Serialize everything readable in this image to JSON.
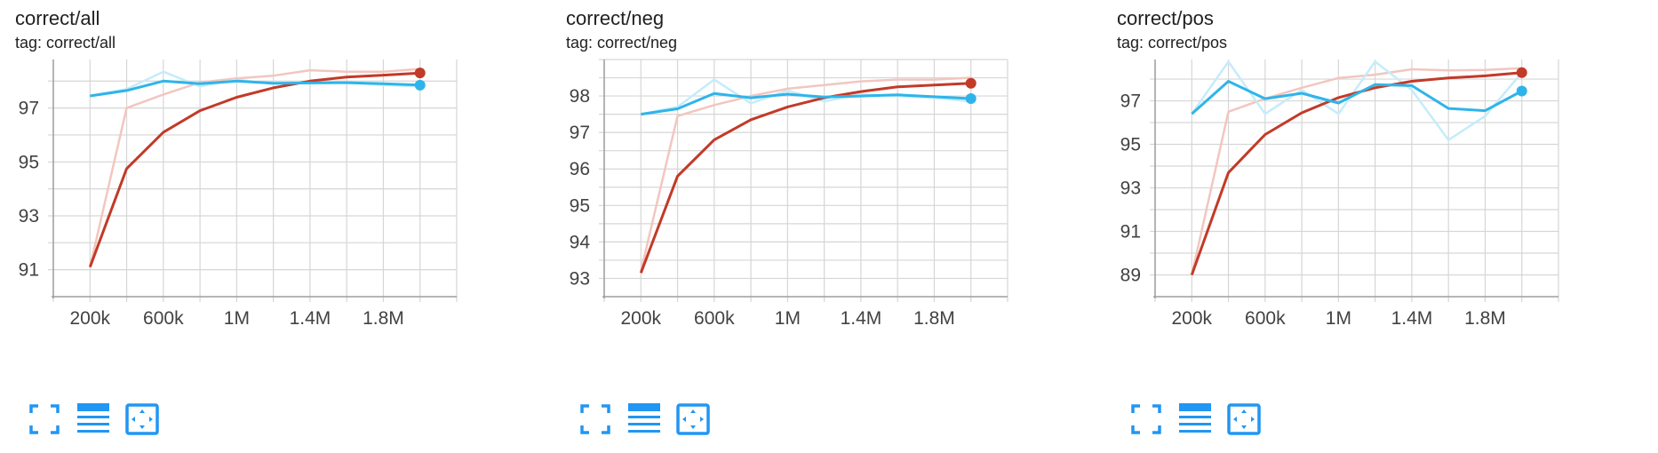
{
  "colors": {
    "run_red": "#c23a28",
    "run_red_raw": "#f2c6bf",
    "run_blue": "#2fb4ea",
    "run_blue_raw": "#c5ecfa",
    "grid": "#d6d6d6",
    "axis": "#9e9e9e",
    "icon": "#2196f3"
  },
  "toolbar_icons": [
    "fullscreen-icon",
    "data-table-icon",
    "fit-domain-icon"
  ],
  "charts": [
    {
      "title": "correct/all",
      "tag_text": "tag: correct/all",
      "chart_data": {
        "type": "line",
        "title": "correct/all",
        "xlabel": "",
        "ylabel": "",
        "xlim": [
          0,
          2200000
        ],
        "ylim": [
          90,
          98.8
        ],
        "xticks": [
          200000,
          600000,
          1000000,
          1400000,
          1800000
        ],
        "xtick_labels": [
          "200k",
          "600k",
          "1M",
          "1.4M",
          "1.8M"
        ],
        "yticks": [
          91,
          93,
          95,
          97
        ],
        "ytick_labels": [
          "91",
          "93",
          "95",
          "97"
        ],
        "grid": true,
        "x": [
          200000,
          400000,
          600000,
          800000,
          1000000,
          1200000,
          1400000,
          1600000,
          1800000,
          2000000
        ],
        "series": [
          {
            "color": "#c23a28",
            "raw_color": "#f2c6bf",
            "raw": [
              91.1,
              97.0,
              97.5,
              97.95,
              98.1,
              98.2,
              98.4,
              98.35,
              98.35,
              98.45
            ],
            "values": [
              91.1,
              94.75,
              96.1,
              96.9,
              97.4,
              97.75,
              98.0,
              98.15,
              98.22,
              98.3
            ]
          },
          {
            "color": "#2fb4ea",
            "raw_color": "#c5ecfa",
            "raw": [
              97.45,
              97.7,
              98.35,
              97.8,
              98.05,
              97.9,
              97.95,
              97.95,
              97.85,
              97.8
            ],
            "values": [
              97.45,
              97.65,
              98.0,
              97.9,
              98.0,
              97.92,
              97.93,
              97.94,
              97.9,
              97.85
            ]
          }
        ]
      }
    },
    {
      "title": "correct/neg",
      "tag_text": "tag: correct/neg",
      "chart_data": {
        "type": "line",
        "title": "correct/neg",
        "xlabel": "",
        "ylabel": "",
        "xlim": [
          0,
          2200000
        ],
        "ylim": [
          92.5,
          99.0
        ],
        "xticks": [
          200000,
          600000,
          1000000,
          1400000,
          1800000
        ],
        "xtick_labels": [
          "200k",
          "600k",
          "1M",
          "1.4M",
          "1.8M"
        ],
        "yticks": [
          93,
          94,
          95,
          96,
          97,
          98
        ],
        "ytick_labels": [
          "93",
          "94",
          "95",
          "96",
          "97",
          "98"
        ],
        "grid": true,
        "x": [
          200000,
          400000,
          600000,
          800000,
          1000000,
          1200000,
          1400000,
          1600000,
          1800000,
          2000000
        ],
        "series": [
          {
            "color": "#c23a28",
            "raw_color": "#f2c6bf",
            "raw": [
              93.2,
              97.45,
              97.75,
              98.0,
              98.2,
              98.3,
              98.4,
              98.45,
              98.45,
              98.5
            ],
            "values": [
              93.15,
              95.8,
              96.8,
              97.35,
              97.7,
              97.95,
              98.12,
              98.25,
              98.3,
              98.35
            ]
          },
          {
            "color": "#2fb4ea",
            "raw_color": "#c5ecfa",
            "raw": [
              97.5,
              97.7,
              98.45,
              97.8,
              98.15,
              97.85,
              98.05,
              98.0,
              97.95,
              97.85
            ],
            "values": [
              97.5,
              97.65,
              98.07,
              97.95,
              98.05,
              97.97,
              98.0,
              98.03,
              97.98,
              97.93
            ]
          }
        ]
      }
    },
    {
      "title": "correct/pos",
      "tag_text": "tag: correct/pos",
      "chart_data": {
        "type": "line",
        "title": "correct/pos",
        "xlabel": "",
        "ylabel": "",
        "xlim": [
          0,
          2200000
        ],
        "ylim": [
          88.0,
          98.9
        ],
        "xticks": [
          200000,
          600000,
          1000000,
          1400000,
          1800000
        ],
        "xtick_labels": [
          "200k",
          "600k",
          "1M",
          "1.4M",
          "1.8M"
        ],
        "yticks": [
          89,
          91,
          93,
          95,
          97
        ],
        "ytick_labels": [
          "89",
          "91",
          "93",
          "95",
          "97"
        ],
        "grid": true,
        "x": [
          200000,
          400000,
          600000,
          800000,
          1000000,
          1200000,
          1400000,
          1600000,
          1800000,
          2000000
        ],
        "series": [
          {
            "color": "#c23a28",
            "raw_color": "#f2c6bf",
            "raw": [
              89.0,
              96.5,
              97.1,
              97.6,
              98.05,
              98.2,
              98.45,
              98.4,
              98.42,
              98.5
            ],
            "values": [
              89.0,
              93.7,
              95.45,
              96.45,
              97.15,
              97.6,
              97.9,
              98.05,
              98.15,
              98.3
            ]
          },
          {
            "color": "#2fb4ea",
            "raw_color": "#c5ecfa",
            "raw": [
              96.4,
              98.8,
              96.4,
              97.5,
              96.4,
              98.8,
              97.5,
              95.2,
              96.3,
              98.3
            ],
            "values": [
              96.4,
              97.9,
              97.1,
              97.35,
              96.9,
              97.75,
              97.7,
              96.65,
              96.55,
              97.45
            ]
          }
        ]
      }
    }
  ]
}
